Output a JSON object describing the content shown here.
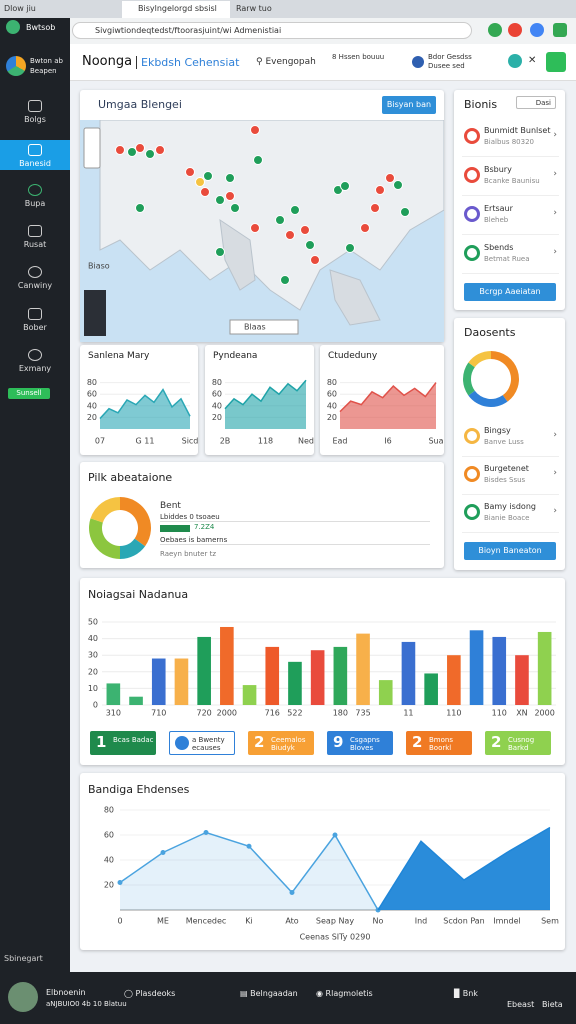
{
  "browser": {
    "tabs": [
      "Dlow jiu",
      "Bisylngelorgd sbsisl",
      "Rarw tuo"
    ],
    "address": "Sivgiwtiondeqtedst/ftoorasjuint/wi Admenistiai"
  },
  "sidebar": {
    "brand": "Bwtsob",
    "user": "Bwton ab Beapen",
    "items": [
      "Bolgs",
      "Banesid",
      "Bupa",
      "Rusat",
      "Canwiny",
      "Bober",
      "Exmany"
    ],
    "badge": "Sunsell",
    "bottom": "Sbinegart"
  },
  "header": {
    "title": "Noonga",
    "subtitle": "Ekbdsh Cehensiat",
    "search": "Evengopah",
    "filter": "8 Hssen bouuu",
    "account": "Bdor Gesdss Dusee sed"
  },
  "map": {
    "title": "Umgaa Blengei",
    "button": "Bisyan ban",
    "label": "Biaso",
    "control": "Blaas"
  },
  "mini_charts": [
    {
      "title": "Sanlena Mary",
      "color": "#2aa7b5",
      "values": [
        18,
        35,
        28,
        50,
        42,
        58,
        46,
        68,
        38,
        52,
        22
      ],
      "ylim": [
        0,
        100
      ],
      "yticks": [
        20,
        40,
        60,
        80
      ],
      "labels": [
        "07",
        "G 11",
        "Sicd"
      ]
    },
    {
      "title": "Pyndeana",
      "color": "#1fa3a8",
      "values": [
        35,
        52,
        42,
        60,
        48,
        72,
        60,
        78,
        66,
        84
      ],
      "ylim": [
        0,
        100
      ],
      "yticks": [
        20,
        40,
        60,
        80
      ],
      "labels": [
        "2B",
        "118",
        "Ned"
      ]
    },
    {
      "title": "Ctudeduny",
      "color": "#e0524a",
      "values": [
        30,
        48,
        42,
        64,
        54,
        74,
        58,
        70,
        56,
        80
      ],
      "ylim": [
        0,
        100
      ],
      "yticks": [
        20,
        40,
        60,
        80
      ],
      "labels": [
        "Ead",
        "I6",
        "Sua"
      ]
    }
  ],
  "donut_panel": {
    "title": "Pilk abeataione",
    "legend": "Bent",
    "rows": [
      "Lbiddes 0 tsoaeu",
      "7.2Z4",
      "Oebaes is bamerns"
    ],
    "footnote": "Raeyn bnuter tz",
    "values": [
      35,
      15,
      30,
      20
    ],
    "colors": [
      "#f08a24",
      "#2aa7b5",
      "#8cc63f",
      "#f5c342"
    ]
  },
  "bar_chart": {
    "title": "Noiagsai Nadanua",
    "ylim": [
      0,
      50
    ],
    "yticks": [
      0,
      10,
      20,
      30,
      40,
      50
    ],
    "categories": [
      "310",
      null,
      "710",
      null,
      "720",
      "2000",
      null,
      "716",
      "522",
      null,
      "180",
      "735",
      null,
      "11",
      null,
      "110",
      null,
      "110",
      "XN",
      "2000"
    ],
    "values": [
      13,
      5,
      28,
      28,
      41,
      47,
      12,
      35,
      26,
      33,
      35,
      43,
      15,
      38,
      19,
      30,
      45,
      41,
      30,
      44
    ],
    "colors": [
      "#3cb371",
      "#3cb371",
      "#3a6fd0",
      "#f7b04a",
      "#1f9e5a",
      "#f06a2a",
      "#8fd14f",
      "#ee5a2a",
      "#1f9e5a",
      "#e94b3c",
      "#2fa85a",
      "#f7b04a",
      "#8fd14f",
      "#3a6fd0",
      "#1f9e5a",
      "#f06a2a",
      "#2f80d8",
      "#3a6fd0",
      "#e94b3c",
      "#8fd14f"
    ]
  },
  "stat_cards": [
    {
      "number": 1,
      "label": "Bcas Badac",
      "color": "#1f8a4c"
    },
    {
      "label": "a Bwenty ecauses",
      "color": "#2f80d8"
    },
    {
      "number": 2,
      "label": "Ceemalos Biudyk",
      "color": "#f7a035"
    },
    {
      "number": 9,
      "label": "Csgapns Bloves",
      "color": "#2f80d8"
    },
    {
      "number": 2,
      "label": "Bmons Boorkl",
      "color": "#f07a24"
    },
    {
      "number": 2,
      "label": "Cusnog Barkd",
      "color": "#8fd14f"
    }
  ],
  "area_chart": {
    "title": "Bandiga Ehdenses",
    "xlabel": "Ceenas SITy 0290",
    "categories": [
      "0",
      "ME",
      "Mencedec",
      "Ki",
      "Ato",
      "Seap Nay",
      "No",
      "Ind",
      "Scdon Pan",
      "Imndel",
      "Sem"
    ],
    "ylim": [
      0,
      80
    ],
    "yticks": [
      20,
      40,
      60,
      80
    ],
    "series": [
      {
        "color": "#4aa3df",
        "values": [
          22,
          46,
          62,
          51,
          14,
          60,
          0,
          null,
          null,
          null,
          null
        ]
      },
      {
        "color": "#1f86d8",
        "values": [
          null,
          null,
          null,
          null,
          null,
          null,
          0,
          55,
          24,
          46,
          66
        ]
      }
    ]
  },
  "bionis": {
    "title": "Bionis",
    "dropdown": "Dasi",
    "items": [
      {
        "title": "Bunmidt Bunlset",
        "sub": "Bialbus 80320",
        "color": "#e94b3c"
      },
      {
        "title": "Bsbury",
        "sub": "Bcanke Baunisu",
        "color": "#e94b3c"
      },
      {
        "title": "Ertsaur",
        "sub": "Bleheb",
        "color": "#6a5acd"
      },
      {
        "title": "Sbends",
        "sub": "Betmat Ruea",
        "color": "#1f9e5a"
      }
    ],
    "button": "Bcrgp Aaeiatan"
  },
  "dosents": {
    "title": "Daosents",
    "values": [
      40,
      25,
      20,
      15
    ],
    "colors": [
      "#f08a24",
      "#2f80d8",
      "#3cb371",
      "#f5c342"
    ],
    "items": [
      {
        "title": "Bingsy",
        "sub": "Banve Luss",
        "color": "#f5b642"
      },
      {
        "title": "Burgetenet",
        "sub": "Bisdes Ssus",
        "color": "#f08a24"
      },
      {
        "title": "Bamy isdong",
        "sub": "Bianie Boace",
        "color": "#1f9e5a"
      }
    ],
    "button": "Bioyn Baneaton"
  },
  "footer": {
    "user": "Elbnoenin",
    "user_sub": "aNJBUIO0 4b 10 Blatuu",
    "links": [
      "Plasdeoks",
      "Belngaadan",
      "Rlagmoletis",
      "Bnk"
    ],
    "right": [
      "Ebeast",
      "Bieta"
    ]
  }
}
